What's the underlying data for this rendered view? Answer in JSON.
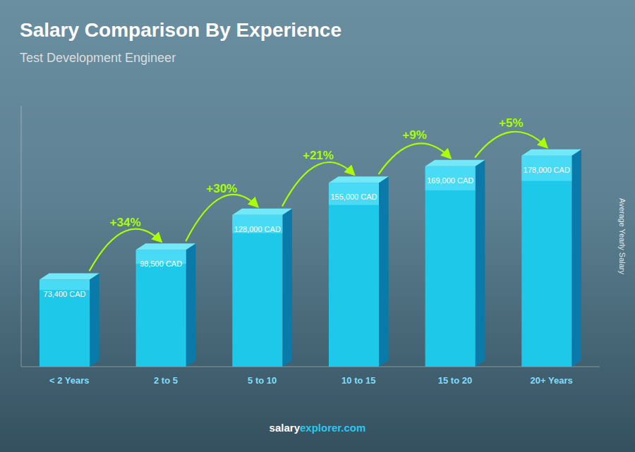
{
  "chart_data": {
    "type": "bar",
    "title": "Salary Comparison By Experience",
    "subtitle": "Test Development Engineer",
    "ylabel": "Average Yearly Salary",
    "categories": [
      "< 2 Years",
      "2 to 5",
      "5 to 10",
      "10 to 15",
      "15 to 20",
      "20+ Years"
    ],
    "values": [
      73400,
      98500,
      128000,
      155000,
      169000,
      178000
    ],
    "value_labels": [
      "73,400 CAD",
      "98,500 CAD",
      "128,000 CAD",
      "155,000 CAD",
      "169,000 CAD",
      "178,000 CAD"
    ],
    "data_labels": true,
    "annotations": [
      "+34%",
      "+30%",
      "+21%",
      "+9%",
      "+5%"
    ],
    "watermark": [
      "salary",
      "explorer.com"
    ],
    "color": "#1ec8e8",
    "ylim": [
      0,
      220000
    ],
    "grid": false,
    "tick_labels": false
  }
}
